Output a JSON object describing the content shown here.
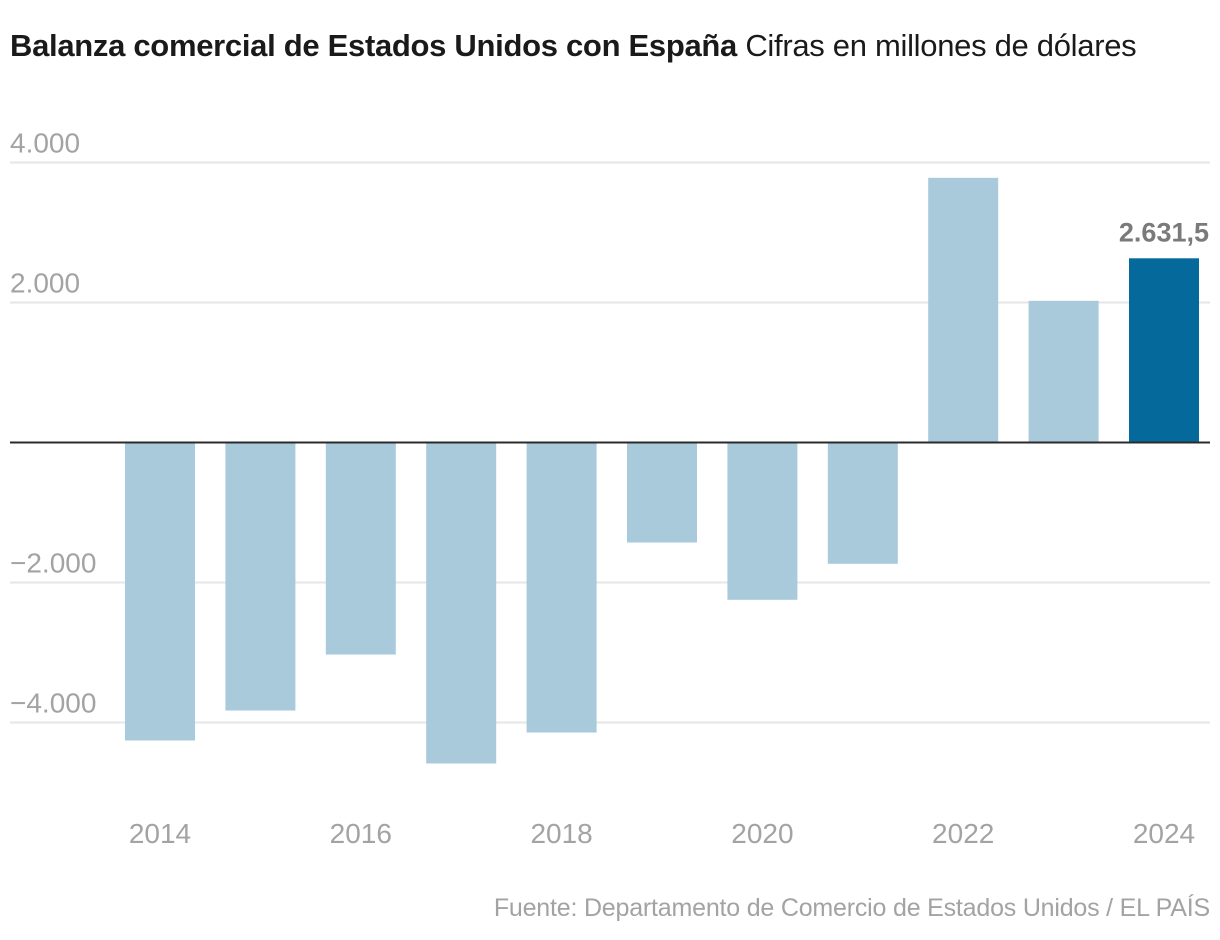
{
  "title": {
    "bold": "Balanza comercial de Estados Unidos con España",
    "subtitle": "Cifras en millones de dólares"
  },
  "source": "Fuente: Departamento de Comercio de Estados Unidos / EL PAÍS",
  "colors": {
    "bar_default": "#a8cadb",
    "bar_highlight": "#06699b",
    "gridline": "#e6e6e6",
    "zero_line": "#2b2b2b",
    "tick_text": "#a3a3a3",
    "data_label": "#7a7a7a"
  },
  "chart_data": {
    "type": "bar",
    "title": "Balanza comercial de Estados Unidos con España",
    "subtitle": "Cifras en millones de dólares",
    "xlabel": "",
    "ylabel": "",
    "categories": [
      "2014",
      "2015",
      "2016",
      "2017",
      "2018",
      "2019",
      "2020",
      "2021",
      "2022",
      "2023",
      "2024"
    ],
    "values": [
      -4257,
      -3829,
      -3029,
      -4586,
      -4143,
      -1429,
      -2247,
      -1733,
      3781,
      2024,
      2631.5
    ],
    "highlight_index": 10,
    "data_labels": [
      {
        "index": 10,
        "text": "2.631,5"
      }
    ],
    "ylim": [
      -4600,
      4000
    ],
    "yticks": [
      4000,
      2000,
      -2000,
      -4000
    ],
    "ytick_labels": [
      "4.000",
      "2.000",
      "−2.000",
      "−4.000"
    ],
    "xtick_labels": [
      {
        "index": 0,
        "text": "2014"
      },
      {
        "index": 2,
        "text": "2016"
      },
      {
        "index": 4,
        "text": "2018"
      },
      {
        "index": 6,
        "text": "2020"
      },
      {
        "index": 8,
        "text": "2022"
      },
      {
        "index": 10,
        "text": "2024"
      }
    ],
    "grid": true,
    "legend": "none"
  }
}
